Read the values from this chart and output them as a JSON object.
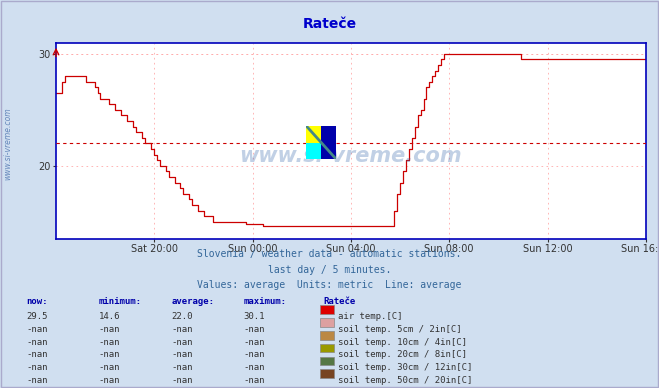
{
  "title": "Rateče",
  "title_color": "#0000cc",
  "bg_color": "#d0dff0",
  "plot_bg_color": "#ffffff",
  "line_color": "#cc0000",
  "avg_line_color": "#cc0000",
  "avg_value": 22.0,
  "ymin": 13.5,
  "ymax": 31.0,
  "ytick_vals": [
    20,
    30
  ],
  "grid_color": "#ffaaaa",
  "watermark_text": "www.si-vreme.com",
  "watermark_color": "#3366aa",
  "watermark_alpha": 0.3,
  "side_label": "www.si-vreme.com",
  "xtick_labels": [
    "Sat 20:00",
    "Sun 00:00",
    "Sun 04:00",
    "Sun 08:00",
    "Sun 12:00",
    "Sun 16:00"
  ],
  "xtick_positions": [
    4,
    8,
    12,
    16,
    20,
    24
  ],
  "subtitle1": "Slovenia / weather data - automatic stations.",
  "subtitle2": "last day / 5 minutes.",
  "subtitle3": "Values: average  Units: metric  Line: average",
  "legend_headers": [
    "now:",
    "minimum:",
    "average:",
    "maximum:",
    "Rateče"
  ],
  "legend_rows": [
    [
      "29.5",
      "14.6",
      "22.0",
      "30.1",
      "#dd0000",
      "air temp.[C]"
    ],
    [
      "-nan",
      "-nan",
      "-nan",
      "-nan",
      "#dda0a0",
      "soil temp. 5cm / 2in[C]"
    ],
    [
      "-nan",
      "-nan",
      "-nan",
      "-nan",
      "#bb8844",
      "soil temp. 10cm / 4in[C]"
    ],
    [
      "-nan",
      "-nan",
      "-nan",
      "-nan",
      "#999900",
      "soil temp. 20cm / 8in[C]"
    ],
    [
      "-nan",
      "-nan",
      "-nan",
      "-nan",
      "#557744",
      "soil temp. 30cm / 12in[C]"
    ],
    [
      "-nan",
      "-nan",
      "-nan",
      "-nan",
      "#774422",
      "soil temp. 50cm / 20in[C]"
    ]
  ],
  "temp_data": [
    26.5,
    26.5,
    27.5,
    28.0,
    28.0,
    28.0,
    28.0,
    28.0,
    28.0,
    28.0,
    27.5,
    27.5,
    27.5,
    27.0,
    26.5,
    26.0,
    26.0,
    26.0,
    25.5,
    25.5,
    25.0,
    25.0,
    24.5,
    24.5,
    24.0,
    24.0,
    23.5,
    23.0,
    23.0,
    22.5,
    22.0,
    22.0,
    21.5,
    21.0,
    20.5,
    20.0,
    20.0,
    19.5,
    19.0,
    19.0,
    18.5,
    18.5,
    18.0,
    17.5,
    17.5,
    17.0,
    16.5,
    16.5,
    16.0,
    16.0,
    15.5,
    15.5,
    15.5,
    15.0,
    15.0,
    15.0,
    15.0,
    15.0,
    15.0,
    15.0,
    15.0,
    15.0,
    15.0,
    15.0,
    14.8,
    14.8,
    14.8,
    14.8,
    14.8,
    14.8,
    14.6,
    14.6,
    14.6,
    14.6,
    14.6,
    14.6,
    14.6,
    14.6,
    14.6,
    14.6,
    14.6,
    14.6,
    14.6,
    14.6,
    14.6,
    14.6,
    14.6,
    14.6,
    14.6,
    14.6,
    14.6,
    14.6,
    14.6,
    14.6,
    14.6,
    14.6,
    14.6,
    14.6,
    14.6,
    14.6,
    14.6,
    14.6,
    14.6,
    14.6,
    14.6,
    14.6,
    14.6,
    14.6,
    14.6,
    14.6,
    14.6,
    14.6,
    14.6,
    14.6,
    16.0,
    17.5,
    18.5,
    19.5,
    20.5,
    21.5,
    22.5,
    23.5,
    24.5,
    25.0,
    26.0,
    27.0,
    27.5,
    28.0,
    28.5,
    29.0,
    29.5,
    30.0,
    30.0,
    30.0,
    30.0,
    30.0,
    30.0,
    30.0,
    30.0,
    30.0,
    30.0,
    30.0,
    30.0,
    30.0,
    30.0,
    30.0,
    30.0,
    30.0,
    30.0,
    30.0,
    30.0,
    30.0,
    30.0,
    30.0,
    30.0,
    30.0,
    30.0,
    29.5,
    29.5,
    29.5,
    29.5,
    29.5,
    29.5,
    29.5,
    29.5,
    29.5,
    29.5,
    29.5,
    29.5,
    29.5,
    29.5,
    29.5,
    29.5,
    29.5,
    29.5,
    29.5,
    29.5,
    29.5,
    29.5,
    29.5,
    29.5,
    29.5,
    29.5,
    29.5,
    29.5,
    29.5,
    29.5,
    29.5,
    29.5,
    29.5,
    29.5,
    29.5,
    29.5,
    29.5,
    29.5,
    29.5,
    29.5,
    29.5,
    29.5,
    29.5
  ]
}
